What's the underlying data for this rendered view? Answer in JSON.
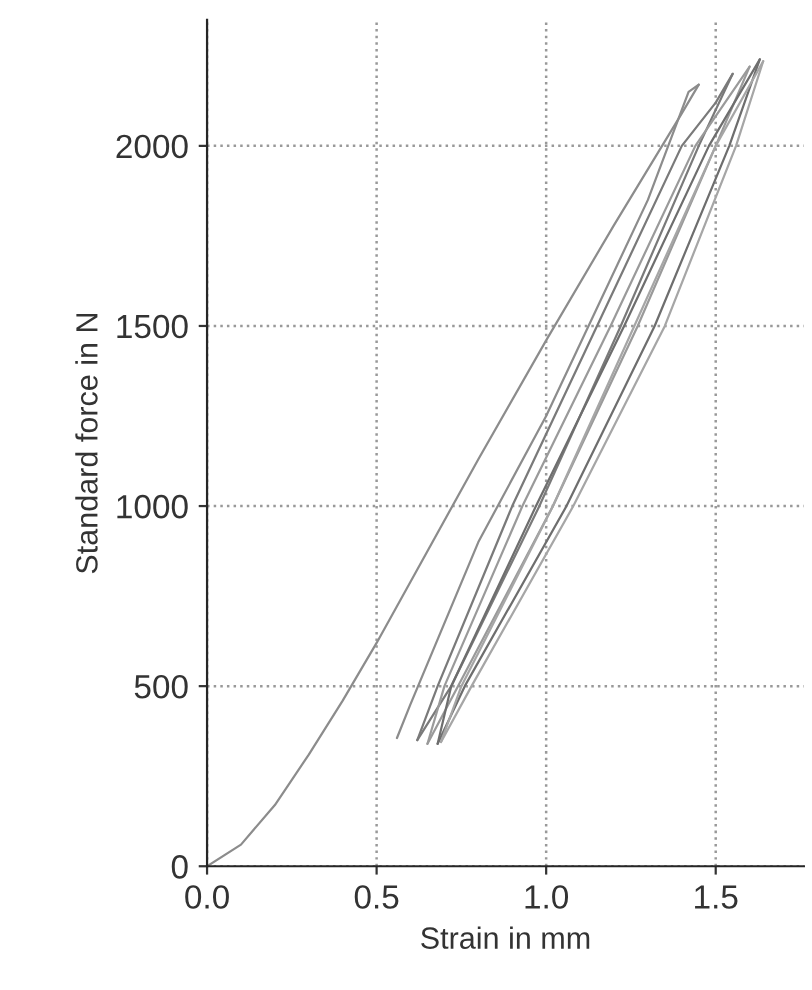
{
  "chart_data": {
    "type": "line",
    "xlabel": "Strain in mm",
    "ylabel": "Standard force in N",
    "xlim": [
      0,
      1.76
    ],
    "ylim": [
      0,
      2350
    ],
    "xticks": [
      {
        "value": 0,
        "label": "0.0"
      },
      0.5,
      {
        "value": 1,
        "label": "1.0"
      },
      1.5
    ],
    "yticks": [
      0,
      500,
      1000,
      1500,
      2000
    ],
    "grid": true,
    "legend": false,
    "marker": "none",
    "line_style": "solid",
    "series": [
      {
        "color": "#8c8c8c",
        "x": [
          0,
          0.1,
          0.2,
          0.3,
          0.4,
          0.5,
          0.6,
          0.8,
          1.0,
          1.2,
          1.4,
          1.45
        ],
        "values": [
          0,
          60,
          170,
          310,
          460,
          620,
          790,
          1130,
          1460,
          1780,
          2090,
          2170
        ]
      },
      {
        "color": "#8c8c8c",
        "x": [
          0.56,
          0.6,
          0.8,
          1.0,
          1.3,
          1.42,
          1.45
        ],
        "values": [
          356,
          450,
          900,
          1250,
          1850,
          2150,
          2170
        ]
      },
      {
        "color": "#7a7a7a",
        "x": [
          0.62,
          0.72,
          0.98,
          1.22,
          1.45,
          1.55
        ],
        "values": [
          350,
          500,
          1000,
          1500,
          2000,
          2200
        ]
      },
      {
        "color": "#7a7a7a",
        "x": [
          0.62,
          0.68,
          0.9,
          1.15,
          1.4,
          1.5,
          1.55
        ],
        "values": [
          350,
          500,
          1000,
          1500,
          2000,
          2120,
          2200
        ]
      },
      {
        "color": "#9a9a9a",
        "x": [
          0.65,
          0.74,
          1.02,
          1.27,
          1.5,
          1.6
        ],
        "values": [
          340,
          500,
          1000,
          1500,
          2000,
          2220
        ]
      },
      {
        "color": "#9a9a9a",
        "x": [
          0.65,
          0.7,
          0.93,
          1.19,
          1.44,
          1.6
        ],
        "values": [
          340,
          500,
          1000,
          1500,
          2000,
          2220
        ]
      },
      {
        "color": "#6e6e6e",
        "x": [
          0.68,
          0.76,
          1.06,
          1.32,
          1.54,
          1.63
        ],
        "values": [
          340,
          500,
          1000,
          1500,
          2000,
          2240
        ]
      },
      {
        "color": "#6e6e6e",
        "x": [
          0.68,
          0.72,
          0.97,
          1.23,
          1.48,
          1.63
        ],
        "values": [
          340,
          500,
          1000,
          1500,
          2000,
          2240
        ]
      },
      {
        "color": "#a6a6a6",
        "x": [
          0.69,
          0.78,
          1.08,
          1.35,
          1.56,
          1.64
        ],
        "values": [
          345,
          500,
          1000,
          1500,
          2000,
          2235
        ]
      },
      {
        "color": "#a6a6a6",
        "x": [
          0.69,
          0.75,
          1.02,
          1.26,
          1.5,
          1.64
        ],
        "values": [
          345,
          500,
          1000,
          1500,
          2000,
          2235
        ]
      }
    ]
  }
}
